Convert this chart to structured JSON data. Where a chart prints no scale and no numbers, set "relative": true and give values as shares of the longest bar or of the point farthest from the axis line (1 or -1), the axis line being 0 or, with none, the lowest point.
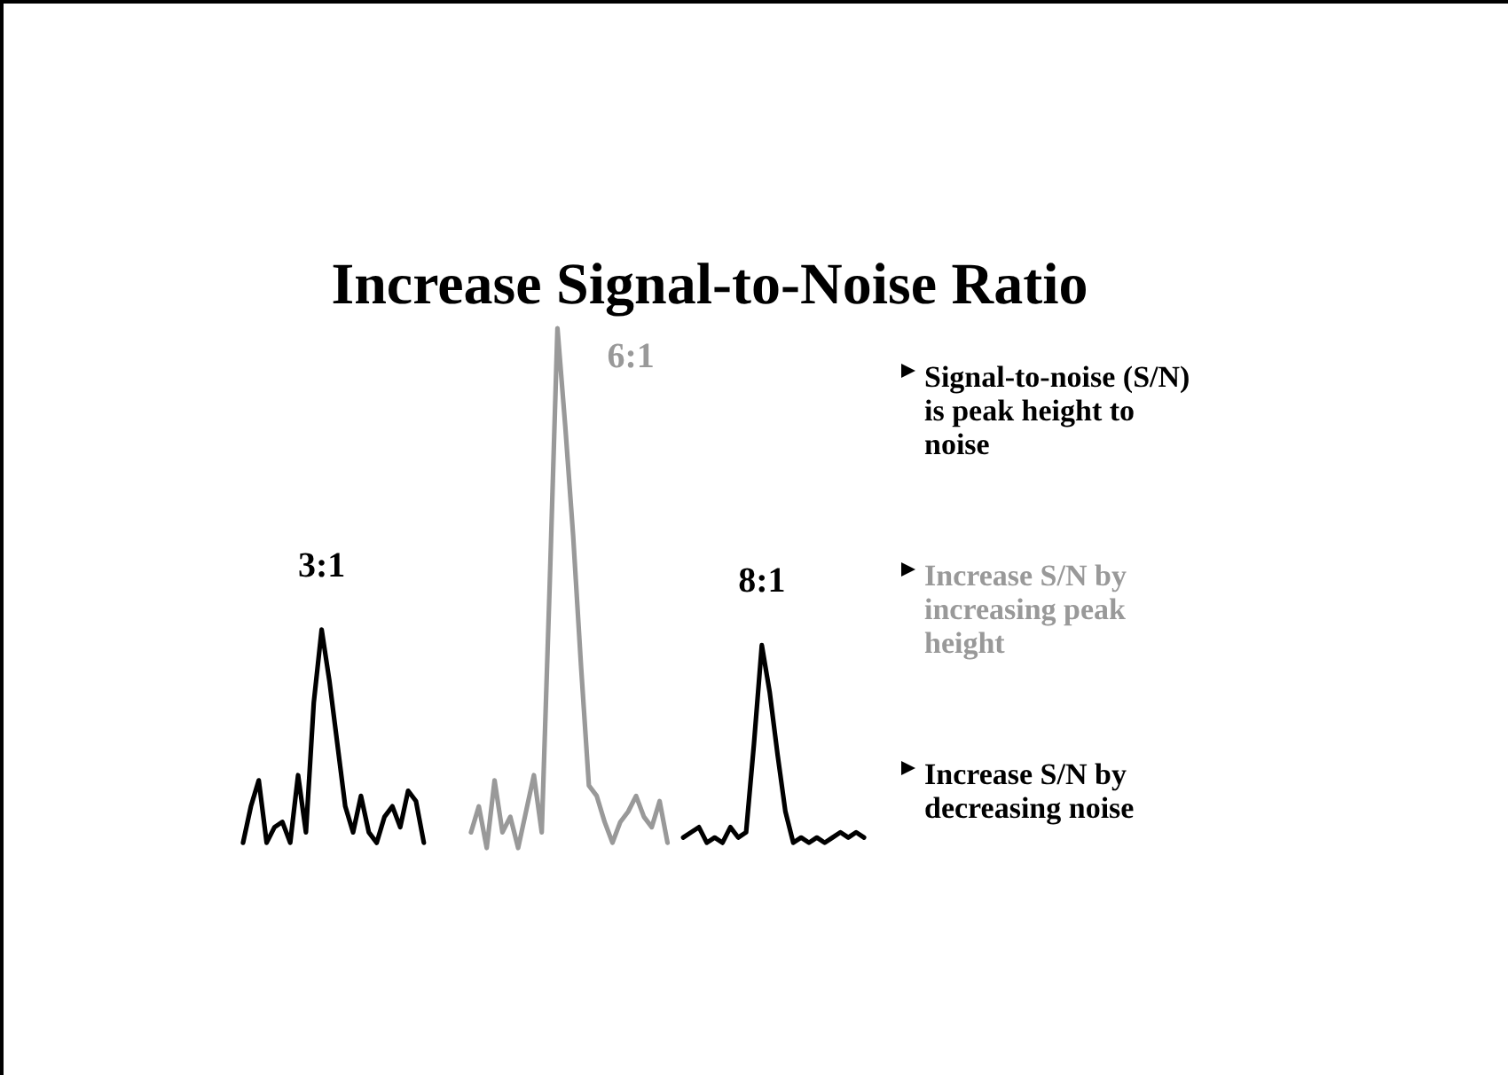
{
  "chart_data": {
    "type": "line",
    "title": "Increase Signal-to-Noise Ratio",
    "relative": true,
    "categories": [
      null,
      null,
      null,
      null,
      null,
      null,
      null,
      null,
      null,
      null,
      null,
      null,
      null,
      null,
      null,
      null,
      null,
      null,
      null,
      null,
      null,
      null,
      null,
      null,
      null,
      null,
      null,
      null,
      null,
      null,
      null,
      null,
      null,
      null,
      null,
      null,
      null,
      null,
      null,
      null,
      null,
      null,
      null,
      null,
      null,
      null,
      null,
      null,
      null,
      null,
      null,
      null,
      null,
      null,
      null,
      null,
      null,
      null,
      null,
      null,
      null,
      null,
      null,
      null,
      null,
      null,
      null,
      null,
      null,
      null,
      null,
      null,
      null,
      null,
      null,
      null,
      null,
      null,
      null,
      null
    ],
    "series": [
      {
        "name": "3:1",
        "color": "#000000",
        "values": [
          0.01,
          0.08,
          0.13,
          0.01,
          0.04,
          0.05,
          0.01,
          0.14,
          0.03,
          0.28,
          0.42,
          0.32,
          0.2,
          0.08,
          0.03,
          0.1,
          0.03,
          0.01,
          0.06,
          0.08,
          0.04,
          0.11,
          0.09,
          0.01,
          null,
          null,
          null,
          null,
          null,
          null,
          null,
          null,
          null,
          null,
          null,
          null,
          null,
          null,
          null,
          null,
          null,
          null,
          null,
          null,
          null,
          null,
          null,
          null,
          null,
          null,
          null,
          null,
          null,
          null,
          null,
          null,
          null,
          null,
          null,
          null,
          null,
          null,
          null,
          null,
          null,
          null,
          null,
          null,
          null,
          null,
          null,
          null,
          null,
          null,
          null,
          null,
          null,
          null,
          null,
          null
        ]
      },
      {
        "name": "6:1",
        "color": "#999999",
        "values": [
          null,
          null,
          null,
          null,
          null,
          null,
          null,
          null,
          null,
          null,
          null,
          null,
          null,
          null,
          null,
          null,
          null,
          null,
          null,
          null,
          null,
          null,
          null,
          null,
          null,
          null,
          null,
          null,
          null,
          0.03,
          0.08,
          0.0,
          0.13,
          0.03,
          0.06,
          0.0,
          0.07,
          0.14,
          0.03,
          0.5,
          1.0,
          0.81,
          0.6,
          0.35,
          0.12,
          0.1,
          0.05,
          0.01,
          0.05,
          0.07,
          0.1,
          0.06,
          0.04,
          0.09,
          0.01,
          null,
          null,
          null,
          null,
          null,
          null,
          null,
          null,
          null,
          null,
          null,
          null,
          null,
          null,
          null,
          null,
          null,
          null,
          null,
          null,
          null,
          null,
          null,
          null,
          null
        ]
      },
      {
        "name": "8:1",
        "color": "#000000",
        "values": [
          null,
          null,
          null,
          null,
          null,
          null,
          null,
          null,
          null,
          null,
          null,
          null,
          null,
          null,
          null,
          null,
          null,
          null,
          null,
          null,
          null,
          null,
          null,
          null,
          null,
          null,
          null,
          null,
          null,
          null,
          null,
          null,
          null,
          null,
          null,
          null,
          null,
          null,
          null,
          null,
          null,
          null,
          null,
          null,
          null,
          null,
          null,
          null,
          null,
          null,
          null,
          null,
          null,
          null,
          null,
          null,
          0.02,
          0.03,
          0.04,
          0.01,
          0.02,
          0.01,
          0.04,
          0.02,
          0.03,
          0.2,
          0.39,
          0.3,
          0.18,
          0.07,
          0.01,
          0.02,
          0.01,
          0.02,
          0.01,
          0.02,
          0.03,
          0.02,
          0.03,
          0.02
        ]
      }
    ],
    "annotations": [
      "Signal-to-noise (S/N) is peak height to noise",
      "Increase S/N by increasing peak height",
      "Increase S/N by decreasing noise"
    ]
  }
}
